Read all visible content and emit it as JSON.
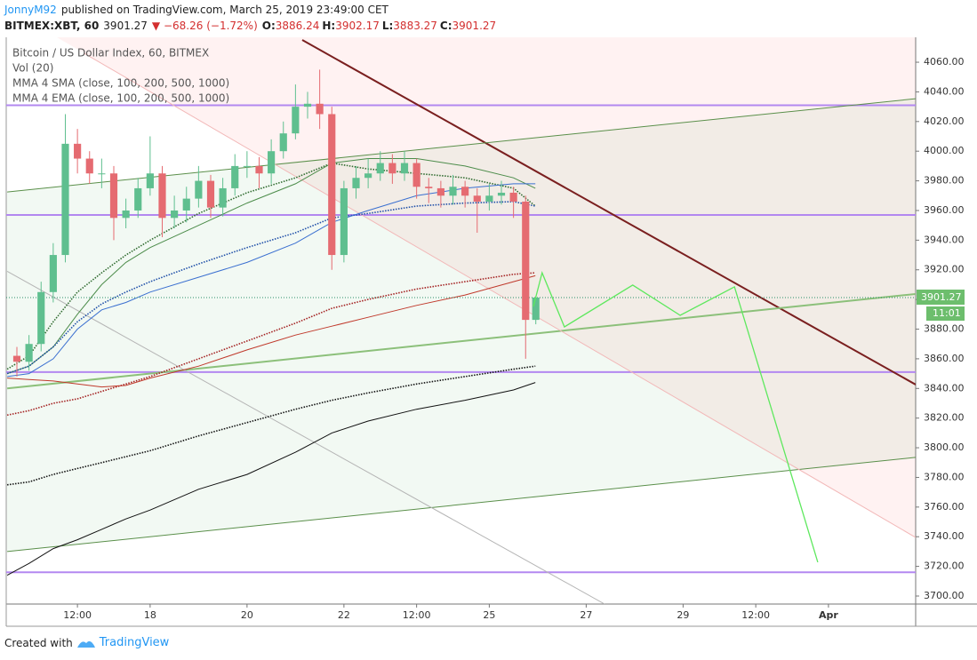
{
  "header": {
    "author": "JonnyM92",
    "published": "published on TradingView.com, March 25, 2019 23:49:00 CET",
    "symbol": "BITMEX:XBT, 60",
    "last": "3901.27",
    "arrow": "▼",
    "change": "−68.26 (−1.72%)",
    "ohlc": [
      {
        "label": "O:",
        "value": "3886.24"
      },
      {
        "label": "H:",
        "value": "3902.17"
      },
      {
        "label": "L:",
        "value": "3883.27"
      },
      {
        "label": "C:",
        "value": "3901.27"
      }
    ]
  },
  "legend": [
    "Bitcoin / US Dollar Index, 60, BITMEX",
    "Vol (20)",
    "MMA 4 SMA (close, 100, 200, 500, 1000)",
    "MMA 4 EMA (close, 100, 200, 500, 1000)"
  ],
  "footer": {
    "created": "Created with",
    "brand": "TradingView"
  },
  "chart_data": {
    "type": "candlestick",
    "x": [
      15.25,
      15.5,
      15.75,
      16.0,
      16.25,
      16.5,
      16.75,
      17.0,
      17.25,
      17.5,
      17.75,
      18.0,
      18.25,
      18.5,
      18.75,
      19.0,
      19.25,
      19.5,
      19.75,
      20.0,
      20.25,
      20.5,
      20.75,
      21.0,
      21.25,
      21.5,
      21.75,
      22.0,
      22.25,
      22.5,
      22.75,
      23.0,
      23.25,
      23.5,
      23.75,
      24.0,
      24.25,
      24.5,
      24.75,
      25.0,
      25.25,
      25.5,
      25.75,
      25.96
    ],
    "open": [
      3862,
      3858,
      3870,
      3905,
      3930,
      4005,
      3995,
      3985,
      3985,
      3955,
      3960,
      3975,
      3985,
      3955,
      3960,
      3968,
      3980,
      3962,
      3975,
      3990,
      3990,
      3985,
      4000,
      4012,
      4030,
      4032,
      4025,
      3930,
      3975,
      3982,
      3985,
      3992,
      3985,
      3992,
      3976,
      3975,
      3970,
      3976,
      3970,
      3966,
      3970,
      3972,
      3966,
      3886.24
    ],
    "high": [
      3868,
      3876,
      3912,
      3938,
      4025,
      4015,
      4000,
      3995,
      3990,
      3968,
      3982,
      4010,
      3990,
      3970,
      3976,
      3990,
      3984,
      3982,
      3998,
      4000,
      3996,
      4008,
      4020,
      4045,
      4040,
      4055,
      4030,
      3980,
      3990,
      3995,
      4000,
      3998,
      4000,
      3995,
      3982,
      3980,
      3984,
      3980,
      3975,
      3978,
      3980,
      3976,
      3970,
      3902.17
    ],
    "low": [
      3848,
      3852,
      3865,
      3898,
      3925,
      3985,
      3978,
      3975,
      3940,
      3948,
      3955,
      3970,
      3942,
      3948,
      3952,
      3962,
      3955,
      3956,
      3970,
      3982,
      3975,
      3978,
      3995,
      4008,
      4022,
      4015,
      3920,
      3925,
      3968,
      3975,
      3980,
      3978,
      3980,
      3968,
      3965,
      3962,
      3964,
      3962,
      3945,
      3960,
      3964,
      3955,
      3860,
      3883.27
    ],
    "close": [
      3858,
      3870,
      3905,
      3930,
      4005,
      3995,
      3985,
      3985,
      3955,
      3960,
      3975,
      3985,
      3955,
      3960,
      3968,
      3980,
      3962,
      3975,
      3990,
      3990,
      3985,
      4000,
      4012,
      4030,
      4032,
      4025,
      3930,
      3975,
      3982,
      3985,
      3992,
      3985,
      3992,
      3976,
      3975,
      3970,
      3976,
      3970,
      3966,
      3970,
      3972,
      3966,
      3886.24,
      3901.27
    ],
    "up_color": "#5fbf8f",
    "down_color": "#e56b71",
    "xlim": [
      15.03,
      33.8
    ],
    "xticks": [
      {
        "value": 16.5,
        "label": "12:00"
      },
      18,
      20,
      22,
      {
        "value": 23.5,
        "label": "12:00"
      },
      25,
      27,
      29,
      {
        "value": 30.5,
        "label": "12:00"
      },
      {
        "value": 32,
        "label": "Apr"
      }
    ],
    "ylim": [
      3694.6,
      4076.8
    ],
    "yticks": [
      {
        "value": 3700,
        "label": "3700.00"
      },
      {
        "value": 3720,
        "label": "3720.00"
      },
      {
        "value": 3740,
        "label": "3740.00"
      },
      {
        "value": 3760,
        "label": "3760.00"
      },
      {
        "value": 3780,
        "label": "3780.00"
      },
      {
        "value": 3800,
        "label": "3800.00"
      },
      {
        "value": 3820,
        "label": "3820.00"
      },
      {
        "value": 3840,
        "label": "3840.00"
      },
      {
        "value": 3860,
        "label": "3860.00"
      },
      {
        "value": 3880,
        "label": "3880.00"
      },
      {
        "value": 3900,
        "label": "3900.00"
      },
      {
        "value": 3920,
        "label": "3920.00"
      },
      {
        "value": 3940,
        "label": "3940.00"
      },
      {
        "value": 3960,
        "label": "3960.00"
      },
      {
        "value": 3980,
        "label": "3980.00"
      },
      {
        "value": 4000,
        "label": "4000.00"
      },
      {
        "value": 4020,
        "label": "4020.00"
      },
      {
        "value": 4040,
        "label": "4040.00"
      },
      {
        "value": 4060,
        "label": "4060.00"
      }
    ],
    "ma_x": [
      15.05,
      15.5,
      16.0,
      16.5,
      17.0,
      17.5,
      18.0,
      19.0,
      20.0,
      21.0,
      21.75,
      22.5,
      23.5,
      24.5,
      25.5,
      25.95
    ],
    "moving_averages": [
      {
        "color": "#2f6b2f",
        "dashed": true,
        "values": [
          3853,
          3862,
          3885,
          3905,
          3918,
          3930,
          3940,
          3958,
          3972,
          3982,
          3992,
          3988,
          3985,
          3982,
          3975,
          3963
        ]
      },
      {
        "color": "#4c8c4a",
        "dashed": false,
        "values": [
          3850,
          3855,
          3868,
          3890,
          3910,
          3925,
          3935,
          3950,
          3965,
          3978,
          3992,
          3995,
          3995,
          3990,
          3982,
          3975
        ]
      },
      {
        "color": "#1f4fa8",
        "dashed": true,
        "values": [
          3850,
          3855,
          3868,
          3885,
          3897,
          3905,
          3912,
          3924,
          3935,
          3945,
          3955,
          3958,
          3963,
          3965,
          3966,
          3963
        ]
      },
      {
        "color": "#3a6fd0",
        "dashed": false,
        "values": [
          3848,
          3850,
          3860,
          3880,
          3893,
          3898,
          3905,
          3915,
          3925,
          3938,
          3952,
          3960,
          3970,
          3975,
          3978,
          3978
        ]
      },
      {
        "color": "#a32020",
        "dashed": true,
        "values": [
          3822,
          3825,
          3830,
          3833,
          3838,
          3843,
          3848,
          3860,
          3872,
          3884,
          3894,
          3900,
          3907,
          3912,
          3917,
          3918
        ]
      },
      {
        "color": "#c0392b",
        "dashed": false,
        "values": [
          3847,
          3846,
          3845,
          3843,
          3841,
          3842,
          3847,
          3855,
          3866,
          3876,
          3882,
          3888,
          3896,
          3903,
          3912,
          3916
        ]
      },
      {
        "color": "#111111",
        "dashed": true,
        "values": [
          3775,
          3777,
          3782,
          3786,
          3790,
          3794,
          3798,
          3808,
          3817,
          3826,
          3832,
          3837,
          3843,
          3848,
          3853,
          3855
        ]
      },
      {
        "color": "#111111",
        "dashed": false,
        "values": [
          3714,
          3722,
          3732,
          3738,
          3745,
          3752,
          3758,
          3772,
          3782,
          3797,
          3810,
          3818,
          3826,
          3832,
          3839,
          3844
        ]
      }
    ],
    "horizontal_lines": {
      "color": "#b388f0",
      "values": [
        4031,
        3957,
        3851,
        3716
      ]
    },
    "trendlines": [
      {
        "color": "#7a1f1f",
        "width": 2,
        "x": [
          21.14,
          33.8
        ],
        "y": [
          4075,
          3842.6
        ]
      },
      {
        "color": "#5a8f4a",
        "width": 1,
        "x": [
          15.05,
          33.8
        ],
        "y": [
          3972.5,
          4035.4
        ]
      },
      {
        "color": "#5a8f4a",
        "width": 1,
        "x": [
          15.05,
          33.8
        ],
        "y": [
          3730,
          3793.5
        ]
      },
      {
        "color": "#8cc07a",
        "width": 2,
        "x": [
          15.05,
          33.8
        ],
        "y": [
          3840,
          3903.7
        ]
      },
      {
        "color": "#f2b8b8",
        "width": 1,
        "x": [
          16.64,
          33.8
        ],
        "y": [
          4066,
          3739.5
        ]
      },
      {
        "color": "#b5b5b5",
        "width": 1,
        "x": [
          15.05,
          27.38
        ],
        "y": [
          3919,
          3694.6
        ]
      }
    ],
    "projection": {
      "color": "#5ee85e",
      "x": [
        25.91,
        26.09,
        26.55,
        27.96,
        28.94,
        30.06,
        31.78
      ],
      "values": [
        3895.3,
        3918,
        3881.5,
        3909.7,
        3889.3,
        3908.5,
        3722.8
      ]
    },
    "last_price": {
      "value": 3901.27,
      "countdown": "11:01",
      "color": "#6dbe6d"
    }
  }
}
